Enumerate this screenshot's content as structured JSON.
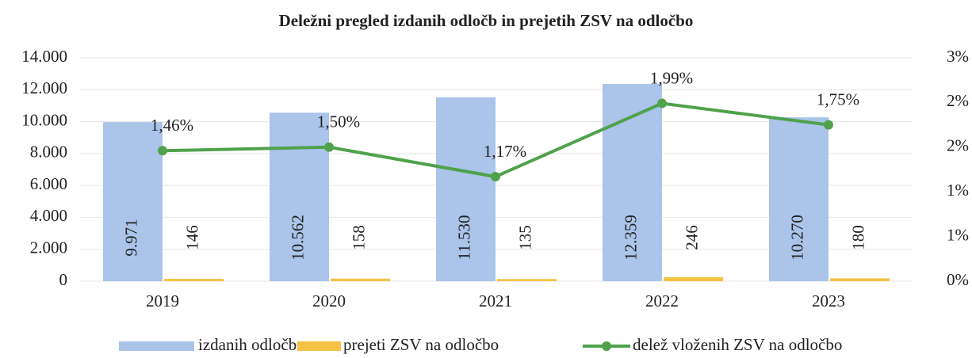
{
  "chart_data": {
    "type": "bar_line",
    "title": "Deležni pregled izdanih odločb in prejetih ZSV na odločbo",
    "categories": [
      "2019",
      "2020",
      "2021",
      "2022",
      "2023"
    ],
    "series": [
      {
        "name": "izdanih odločb",
        "type": "bar",
        "color": "#aac4ea",
        "values": [
          9971,
          10562,
          11530,
          12359,
          10270
        ],
        "value_labels": [
          "9.971",
          "10.562",
          "11.530",
          "12.359",
          "10.270"
        ]
      },
      {
        "name": "prejeti  ZSV na odločbo",
        "type": "bar",
        "color": "#f5c244",
        "values": [
          146,
          158,
          135,
          246,
          180
        ]
      },
      {
        "name": "delež vloženih  ZSV na odločbo",
        "type": "line",
        "axis": "y2",
        "color": "#4fa24b",
        "values": [
          1.46,
          1.5,
          1.17,
          1.99,
          1.75
        ],
        "value_labels": [
          "1,46%",
          "1,50%",
          "1,17%",
          "1,99%",
          "1,75%"
        ]
      }
    ],
    "ylim": [
      0,
      14000
    ],
    "yticks": [
      0,
      {
        "value": 2000,
        "label": "2.000"
      },
      {
        "value": 4000,
        "label": "4.000"
      },
      {
        "value": 6000,
        "label": "6.000"
      },
      {
        "value": 8000,
        "label": "8.000"
      },
      {
        "value": 10000,
        "label": "10.000"
      },
      {
        "value": 12000,
        "label": "12.000"
      },
      {
        "value": 14000,
        "label": "14.000"
      }
    ],
    "y2lim": [
      0,
      2.5
    ],
    "y2ticks": [
      {
        "value": 0,
        "label": "0%"
      },
      {
        "value": 0.5,
        "label": "1%"
      },
      {
        "value": 1,
        "label": "1%"
      },
      {
        "value": 1.5,
        "label": "2%"
      },
      {
        "value": 2,
        "label": "2%"
      },
      {
        "value": 2.5,
        "label": "3%"
      }
    ],
    "grid": true,
    "legend": "bottom"
  }
}
